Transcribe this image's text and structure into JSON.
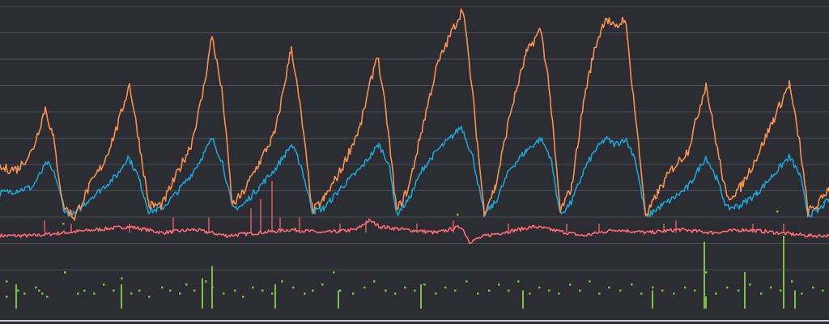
{
  "chart_data": {
    "type": "line",
    "title": "",
    "xlabel": "",
    "ylabel": "",
    "grid": true,
    "legend": "none",
    "x_range": [
      0,
      1024
    ],
    "ylim": [
      -4,
      100
    ],
    "series": [
      {
        "key": "orange",
        "color": "#f6914f",
        "points": [
          [
            0,
            46
          ],
          [
            22,
            46
          ],
          [
            40,
            52
          ],
          [
            56,
            66
          ],
          [
            66,
            56
          ],
          [
            78,
            34
          ],
          [
            92,
            30
          ],
          [
            110,
            40
          ],
          [
            128,
            48
          ],
          [
            145,
            60
          ],
          [
            160,
            74
          ],
          [
            170,
            58
          ],
          [
            184,
            34
          ],
          [
            200,
            34
          ],
          [
            218,
            44
          ],
          [
            236,
            54
          ],
          [
            250,
            70
          ],
          [
            262,
            90
          ],
          [
            275,
            70
          ],
          [
            287,
            34
          ],
          [
            300,
            38
          ],
          [
            320,
            48
          ],
          [
            340,
            58
          ],
          [
            360,
            86
          ],
          [
            372,
            64
          ],
          [
            386,
            32
          ],
          [
            400,
            36
          ],
          [
            422,
            46
          ],
          [
            445,
            60
          ],
          [
            466,
            84
          ],
          [
            478,
            62
          ],
          [
            490,
            32
          ],
          [
            505,
            40
          ],
          [
            522,
            60
          ],
          [
            540,
            80
          ],
          [
            556,
            90
          ],
          [
            572,
            99
          ],
          [
            584,
            70
          ],
          [
            598,
            32
          ],
          [
            612,
            40
          ],
          [
            630,
            64
          ],
          [
            650,
            84
          ],
          [
            668,
            92
          ],
          [
            678,
            74
          ],
          [
            692,
            32
          ],
          [
            706,
            40
          ],
          [
            722,
            70
          ],
          [
            735,
            86
          ],
          [
            748,
            96
          ],
          [
            760,
            92
          ],
          [
            772,
            96
          ],
          [
            784,
            66
          ],
          [
            798,
            30
          ],
          [
            812,
            38
          ],
          [
            830,
            46
          ],
          [
            850,
            52
          ],
          [
            872,
            74
          ],
          [
            885,
            54
          ],
          [
            898,
            36
          ],
          [
            915,
            40
          ],
          [
            935,
            50
          ],
          [
            955,
            62
          ],
          [
            975,
            74
          ],
          [
            988,
            54
          ],
          [
            998,
            32
          ],
          [
            1010,
            34
          ],
          [
            1024,
            40
          ]
        ]
      },
      {
        "key": "blue",
        "color": "#1aa3d1",
        "points": [
          [
            0,
            38
          ],
          [
            22,
            39
          ],
          [
            40,
            40
          ],
          [
            58,
            48
          ],
          [
            68,
            44
          ],
          [
            80,
            32
          ],
          [
            92,
            31
          ],
          [
            110,
            36
          ],
          [
            128,
            40
          ],
          [
            145,
            44
          ],
          [
            158,
            50
          ],
          [
            170,
            44
          ],
          [
            184,
            32
          ],
          [
            200,
            33
          ],
          [
            218,
            38
          ],
          [
            236,
            44
          ],
          [
            250,
            50
          ],
          [
            262,
            56
          ],
          [
            275,
            48
          ],
          [
            287,
            33
          ],
          [
            300,
            34
          ],
          [
            320,
            40
          ],
          [
            340,
            46
          ],
          [
            360,
            54
          ],
          [
            372,
            47
          ],
          [
            386,
            32
          ],
          [
            400,
            33
          ],
          [
            422,
            40
          ],
          [
            445,
            46
          ],
          [
            468,
            54
          ],
          [
            480,
            48
          ],
          [
            490,
            31
          ],
          [
            505,
            36
          ],
          [
            522,
            46
          ],
          [
            540,
            52
          ],
          [
            556,
            56
          ],
          [
            570,
            60
          ],
          [
            584,
            50
          ],
          [
            598,
            31
          ],
          [
            612,
            35
          ],
          [
            630,
            46
          ],
          [
            650,
            52
          ],
          [
            668,
            56
          ],
          [
            680,
            50
          ],
          [
            692,
            31
          ],
          [
            706,
            35
          ],
          [
            722,
            46
          ],
          [
            735,
            52
          ],
          [
            748,
            56
          ],
          [
            760,
            54
          ],
          [
            772,
            56
          ],
          [
            784,
            50
          ],
          [
            798,
            30
          ],
          [
            812,
            33
          ],
          [
            830,
            36
          ],
          [
            850,
            40
          ],
          [
            872,
            50
          ],
          [
            885,
            43
          ],
          [
            898,
            33
          ],
          [
            915,
            34
          ],
          [
            935,
            38
          ],
          [
            955,
            44
          ],
          [
            975,
            50
          ],
          [
            988,
            44
          ],
          [
            998,
            31
          ],
          [
            1010,
            32
          ],
          [
            1024,
            36
          ]
        ]
      },
      {
        "key": "red",
        "color": "#ff6b74",
        "points": [
          [
            0,
            24
          ],
          [
            40,
            24
          ],
          [
            80,
            25
          ],
          [
            120,
            26
          ],
          [
            160,
            27
          ],
          [
            200,
            25
          ],
          [
            240,
            26
          ],
          [
            280,
            24
          ],
          [
            320,
            25
          ],
          [
            360,
            26
          ],
          [
            400,
            25
          ],
          [
            440,
            26
          ],
          [
            456,
            29
          ],
          [
            470,
            27
          ],
          [
            500,
            26
          ],
          [
            540,
            25
          ],
          [
            570,
            27
          ],
          [
            580,
            22
          ],
          [
            600,
            24
          ],
          [
            640,
            26
          ],
          [
            660,
            27
          ],
          [
            680,
            26
          ],
          [
            720,
            24
          ],
          [
            760,
            26
          ],
          [
            800,
            25
          ],
          [
            840,
            26
          ],
          [
            880,
            25
          ],
          [
            920,
            26
          ],
          [
            960,
            25
          ],
          [
            1000,
            24
          ],
          [
            1024,
            24
          ]
        ]
      }
    ],
    "spikes": {
      "color": "#ff6b74",
      "items": [
        [
          55,
          29
        ],
        [
          88,
          28
        ],
        [
          160,
          28
        ],
        [
          214,
          30
        ],
        [
          258,
          30
        ],
        [
          310,
          33
        ],
        [
          322,
          36
        ],
        [
          336,
          42
        ],
        [
          346,
          30
        ],
        [
          370,
          30
        ],
        [
          420,
          28
        ],
        [
          452,
          29
        ],
        [
          515,
          28
        ],
        [
          560,
          29
        ],
        [
          628,
          28
        ],
        [
          700,
          28
        ],
        [
          740,
          28
        ],
        [
          820,
          28
        ],
        [
          835,
          29
        ],
        [
          930,
          28
        ],
        [
          968,
          28
        ]
      ]
    },
    "dots": {
      "color": "#7bc043",
      "items": [
        [
          8,
          9
        ],
        [
          8,
          4
        ],
        [
          22,
          6
        ],
        [
          30,
          5
        ],
        [
          44,
          7
        ],
        [
          48,
          6
        ],
        [
          52,
          5
        ],
        [
          58,
          4
        ],
        [
          80,
          12
        ],
        [
          96,
          5
        ],
        [
          104,
          6
        ],
        [
          116,
          5
        ],
        [
          128,
          8
        ],
        [
          140,
          6
        ],
        [
          150,
          10
        ],
        [
          162,
          5
        ],
        [
          172,
          6
        ],
        [
          184,
          4
        ],
        [
          200,
          7
        ],
        [
          210,
          6
        ],
        [
          222,
          5
        ],
        [
          230,
          8
        ],
        [
          240,
          6
        ],
        [
          254,
          9
        ],
        [
          262,
          7
        ],
        [
          276,
          5
        ],
        [
          290,
          6
        ],
        [
          300,
          4
        ],
        [
          312,
          7
        ],
        [
          324,
          6
        ],
        [
          336,
          5
        ],
        [
          348,
          9
        ],
        [
          362,
          7
        ],
        [
          376,
          5
        ],
        [
          386,
          6
        ],
        [
          398,
          8
        ],
        [
          412,
          12
        ],
        [
          420,
          6
        ],
        [
          436,
          5
        ],
        [
          450,
          7
        ],
        [
          462,
          9
        ],
        [
          476,
          6
        ],
        [
          488,
          5
        ],
        [
          500,
          7
        ],
        [
          512,
          6
        ],
        [
          524,
          8
        ],
        [
          538,
          5
        ],
        [
          550,
          7
        ],
        [
          562,
          6
        ],
        [
          576,
          9
        ],
        [
          590,
          5
        ],
        [
          604,
          6
        ],
        [
          616,
          8
        ],
        [
          628,
          6
        ],
        [
          640,
          9
        ],
        [
          654,
          5
        ],
        [
          666,
          7
        ],
        [
          678,
          6
        ],
        [
          690,
          5
        ],
        [
          704,
          8
        ],
        [
          716,
          6
        ],
        [
          728,
          9
        ],
        [
          740,
          5
        ],
        [
          752,
          7
        ],
        [
          766,
          6
        ],
        [
          780,
          8
        ],
        [
          792,
          5
        ],
        [
          806,
          7
        ],
        [
          818,
          6
        ],
        [
          832,
          5
        ],
        [
          846,
          7
        ],
        [
          858,
          6
        ],
        [
          872,
          12
        ],
        [
          884,
          5
        ],
        [
          898,
          7
        ],
        [
          912,
          6
        ],
        [
          926,
          8
        ],
        [
          940,
          5
        ],
        [
          952,
          7
        ],
        [
          964,
          6
        ],
        [
          978,
          9
        ],
        [
          990,
          5
        ],
        [
          1004,
          7
        ],
        [
          1016,
          6
        ],
        [
          960,
          32
        ],
        [
          1018,
          35
        ],
        [
          565,
          31
        ],
        [
          78,
          28
        ],
        [
          390,
          33
        ]
      ]
    },
    "bars": {
      "color": "#7bc043",
      "items": [
        [
          20,
          8
        ],
        [
          150,
          8
        ],
        [
          250,
          10
        ],
        [
          262,
          14
        ],
        [
          340,
          8
        ],
        [
          418,
          6
        ],
        [
          520,
          8
        ],
        [
          646,
          6
        ],
        [
          806,
          6
        ],
        [
          870,
          22
        ],
        [
          872,
          4
        ],
        [
          920,
          12
        ],
        [
          968,
          24
        ],
        [
          982,
          6
        ]
      ]
    }
  }
}
